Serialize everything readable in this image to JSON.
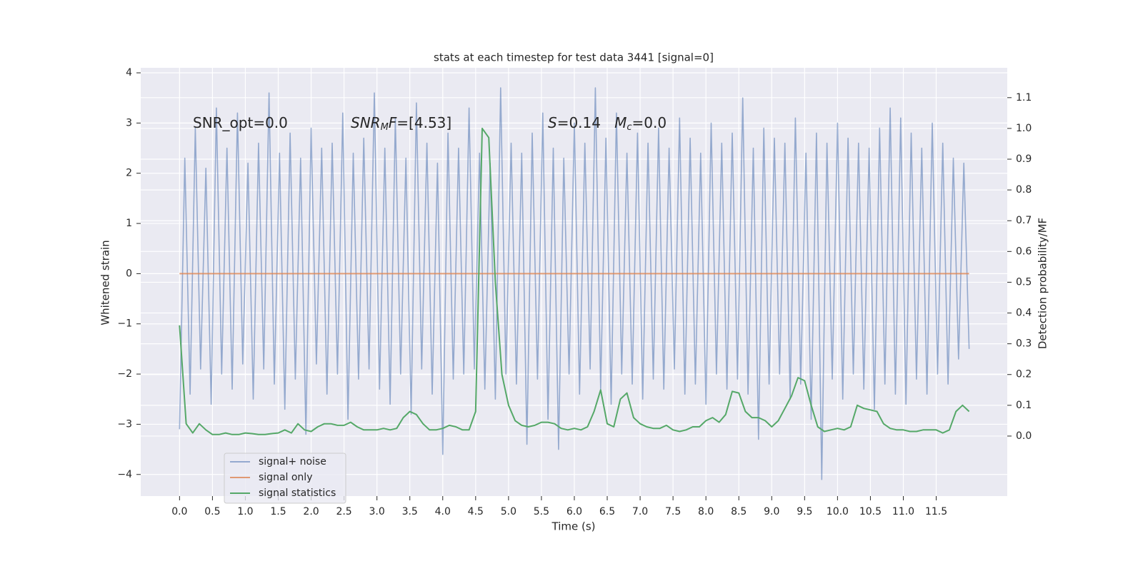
{
  "chart_data": {
    "type": "line",
    "title": "stats at each timestep for test data 3441 [signal=0]",
    "xlabel": "Time (s)",
    "ylabel": "Whitened strain",
    "y2label": "Detection probability/MF",
    "annotations": [
      [
        {
          "text": "SNR_opt=0.0"
        }
      ],
      [
        {
          "text": "SNR",
          "style": "italic"
        },
        {
          "text": "M",
          "style": "italic",
          "sub": true
        },
        {
          "text": "F",
          "style": "italic"
        },
        {
          "text": "=[4.53]"
        }
      ],
      [
        {
          "text": "S",
          "style": "italic"
        },
        {
          "text": "=0.14   "
        },
        {
          "text": "M",
          "style": "italic"
        },
        {
          "text": "c",
          "style": "italic",
          "sub": true
        },
        {
          "text": "=0.0"
        }
      ]
    ],
    "xlim": [
      -0.59,
      12.58
    ],
    "ylim": [
      -4.43,
      4.1
    ],
    "y2lim": [
      -0.195,
      1.197
    ],
    "xticks": [
      {
        "value": 0,
        "label": "0.0"
      },
      0.5,
      {
        "value": 1,
        "label": "1.0"
      },
      1.5,
      {
        "value": 2,
        "label": "2.0"
      },
      2.5,
      {
        "value": 3,
        "label": "3.0"
      },
      3.5,
      {
        "value": 4,
        "label": "4.0"
      },
      4.5,
      {
        "value": 5,
        "label": "5.0"
      },
      5.5,
      {
        "value": 6,
        "label": "6.0"
      },
      6.5,
      {
        "value": 7,
        "label": "7.0"
      },
      7.5,
      {
        "value": 8,
        "label": "8.0"
      },
      8.5,
      {
        "value": 9,
        "label": "9.0"
      },
      9.5,
      {
        "value": 10,
        "label": "10.0"
      },
      10.5,
      {
        "value": 11,
        "label": "11.0"
      },
      11.5
    ],
    "yticks": [
      {
        "value": -4,
        "label": "−4"
      },
      {
        "value": -3,
        "label": "−3"
      },
      {
        "value": -2,
        "label": "−2"
      },
      {
        "value": -1,
        "label": "−1"
      },
      0,
      1,
      2,
      3,
      4
    ],
    "y2ticks": [
      {
        "value": 0,
        "label": "0.0"
      },
      0.1,
      0.2,
      0.3,
      0.4,
      0.5,
      0.6,
      0.7,
      0.8,
      0.9,
      {
        "value": 1,
        "label": "1.0"
      },
      1.1
    ],
    "grid": true,
    "legend": "lower left",
    "series": [
      {
        "name": "signal+ noise",
        "color": "#4c72b0",
        "alpha": 0.55,
        "x": [
          0,
          0.08,
          0.16,
          0.24,
          0.32,
          0.4,
          0.48,
          0.56,
          0.64,
          0.72,
          0.8,
          0.88,
          0.96,
          1.04,
          1.12,
          1.2,
          1.28,
          1.36,
          1.44,
          1.52,
          1.6,
          1.68,
          1.76,
          1.84,
          1.92,
          2.0,
          2.08,
          2.16,
          2.24,
          2.32,
          2.4,
          2.48,
          2.56,
          2.64,
          2.72,
          2.8,
          2.88,
          2.96,
          3.04,
          3.12,
          3.2,
          3.28,
          3.36,
          3.44,
          3.52,
          3.6,
          3.68,
          3.76,
          3.84,
          3.92,
          4.0,
          4.08,
          4.16,
          4.24,
          4.32,
          4.4,
          4.48,
          4.56,
          4.64,
          4.72,
          4.8,
          4.88,
          4.96,
          5.04,
          5.12,
          5.2,
          5.28,
          5.36,
          5.44,
          5.52,
          5.6,
          5.68,
          5.76,
          5.84,
          5.92,
          6.0,
          6.08,
          6.16,
          6.24,
          6.32,
          6.4,
          6.48,
          6.56,
          6.64,
          6.72,
          6.8,
          6.88,
          6.96,
          7.04,
          7.12,
          7.2,
          7.28,
          7.36,
          7.44,
          7.52,
          7.6,
          7.68,
          7.76,
          7.84,
          7.92,
          8.0,
          8.08,
          8.16,
          8.24,
          8.32,
          8.4,
          8.48,
          8.56,
          8.64,
          8.72,
          8.8,
          8.88,
          8.96,
          9.04,
          9.12,
          9.2,
          9.28,
          9.36,
          9.44,
          9.52,
          9.6,
          9.68,
          9.76,
          9.84,
          9.92,
          10.0,
          10.08,
          10.16,
          10.24,
          10.32,
          10.4,
          10.48,
          10.56,
          10.64,
          10.72,
          10.8,
          10.88,
          10.96,
          11.04,
          11.12,
          11.2,
          11.28,
          11.36,
          11.44,
          11.52,
          11.6,
          11.68,
          11.76,
          11.84,
          11.92,
          12.0
        ],
        "values": [
          -3.1,
          2.3,
          -2.4,
          2.9,
          -1.9,
          2.1,
          -2.6,
          3.3,
          -2.0,
          2.5,
          -2.3,
          3.2,
          -1.8,
          2.2,
          -2.5,
          2.6,
          -1.9,
          3.6,
          -2.2,
          2.4,
          -2.7,
          2.8,
          -2.1,
          2.3,
          -3.2,
          2.9,
          -1.8,
          2.5,
          -2.4,
          2.6,
          -2.0,
          3.2,
          -2.9,
          2.4,
          -2.1,
          2.7,
          -1.9,
          3.6,
          -2.3,
          2.5,
          -2.6,
          3.1,
          -2.0,
          2.3,
          -2.8,
          3.4,
          -1.9,
          2.6,
          -2.4,
          2.2,
          -3.6,
          2.8,
          -2.1,
          2.5,
          -2.0,
          3.3,
          -1.9,
          2.4,
          -2.3,
          2.2,
          -2.5,
          3.7,
          -2.0,
          2.6,
          -2.2,
          2.4,
          -3.4,
          2.8,
          -2.1,
          3.2,
          -2.9,
          2.5,
          -3.5,
          2.3,
          -2.0,
          3.0,
          -2.4,
          2.6,
          -1.9,
          3.7,
          -2.3,
          2.7,
          -2.6,
          3.2,
          -2.0,
          2.4,
          -2.2,
          2.8,
          -2.5,
          2.6,
          -2.1,
          2.9,
          -2.3,
          2.5,
          -1.9,
          3.1,
          -2.4,
          2.7,
          -2.2,
          2.4,
          -2.6,
          3.0,
          -2.0,
          2.6,
          -2.3,
          2.8,
          -2.1,
          3.5,
          -2.4,
          2.5,
          -3.3,
          2.9,
          -2.2,
          2.7,
          -2.0,
          2.6,
          -2.5,
          3.1,
          -2.2,
          2.4,
          -2.9,
          2.8,
          -4.1,
          2.6,
          -2.1,
          3.0,
          -2.5,
          2.7,
          -2.0,
          2.6,
          -2.3,
          2.5,
          -2.7,
          2.9,
          -2.2,
          3.3,
          -2.4,
          3.1,
          -2.6,
          2.8,
          -2.1,
          2.5,
          -2.4,
          3.0,
          -2.0,
          2.6,
          -2.2,
          2.3,
          -1.7,
          2.2,
          -1.5
        ]
      },
      {
        "name": "signal only",
        "color": "#dd8452",
        "alpha": 0.8,
        "x": [
          0,
          12.0
        ],
        "values": [
          0,
          0
        ]
      },
      {
        "name": "signal statistics",
        "color": "#55a868",
        "alpha": 1,
        "axis": "y2",
        "x": [
          0,
          0.1,
          0.2,
          0.3,
          0.4,
          0.5,
          0.6,
          0.7,
          0.8,
          0.9,
          1.0,
          1.1,
          1.2,
          1.3,
          1.4,
          1.5,
          1.6,
          1.7,
          1.8,
          1.9,
          2.0,
          2.1,
          2.2,
          2.3,
          2.4,
          2.5,
          2.6,
          2.7,
          2.8,
          2.9,
          3.0,
          3.1,
          3.2,
          3.3,
          3.4,
          3.5,
          3.6,
          3.7,
          3.8,
          3.9,
          4.0,
          4.1,
          4.2,
          4.3,
          4.4,
          4.5,
          4.6,
          4.7,
          4.8,
          4.9,
          5.0,
          5.1,
          5.2,
          5.3,
          5.4,
          5.5,
          5.6,
          5.7,
          5.8,
          5.9,
          6.0,
          6.1,
          6.2,
          6.3,
          6.4,
          6.5,
          6.6,
          6.7,
          6.8,
          6.9,
          7.0,
          7.1,
          7.2,
          7.3,
          7.4,
          7.5,
          7.6,
          7.7,
          7.8,
          7.9,
          8.0,
          8.1,
          8.2,
          8.3,
          8.4,
          8.5,
          8.6,
          8.7,
          8.8,
          8.9,
          9.0,
          9.1,
          9.2,
          9.3,
          9.4,
          9.5,
          9.6,
          9.7,
          9.8,
          9.9,
          10.0,
          10.1,
          10.2,
          10.3,
          10.4,
          10.5,
          10.6,
          10.7,
          10.8,
          10.9,
          11.0,
          11.1,
          11.2,
          11.3,
          11.4,
          11.5,
          11.6,
          11.7,
          11.8,
          11.9,
          12.0
        ],
        "values": [
          0.36,
          0.04,
          0.01,
          0.04,
          0.02,
          0.005,
          0.005,
          0.01,
          0.005,
          0.005,
          0.01,
          0.008,
          0.005,
          0.005,
          0.008,
          0.01,
          0.02,
          0.01,
          0.04,
          0.02,
          0.015,
          0.03,
          0.04,
          0.04,
          0.035,
          0.035,
          0.045,
          0.03,
          0.02,
          0.02,
          0.02,
          0.025,
          0.02,
          0.025,
          0.06,
          0.08,
          0.07,
          0.04,
          0.02,
          0.02,
          0.025,
          0.035,
          0.03,
          0.02,
          0.02,
          0.08,
          1.0,
          0.97,
          0.5,
          0.2,
          0.1,
          0.05,
          0.035,
          0.03,
          0.035,
          0.045,
          0.045,
          0.04,
          0.025,
          0.02,
          0.025,
          0.02,
          0.03,
          0.08,
          0.15,
          0.04,
          0.03,
          0.12,
          0.14,
          0.06,
          0.04,
          0.03,
          0.025,
          0.025,
          0.035,
          0.02,
          0.015,
          0.02,
          0.03,
          0.03,
          0.05,
          0.06,
          0.045,
          0.07,
          0.145,
          0.14,
          0.08,
          0.06,
          0.06,
          0.05,
          0.03,
          0.05,
          0.09,
          0.13,
          0.19,
          0.18,
          0.1,
          0.03,
          0.015,
          0.02,
          0.025,
          0.02,
          0.03,
          0.1,
          0.09,
          0.085,
          0.08,
          0.04,
          0.025,
          0.02,
          0.02,
          0.015,
          0.015,
          0.02,
          0.02,
          0.02,
          0.01,
          0.02,
          0.08,
          0.1,
          0.08
        ]
      }
    ]
  }
}
